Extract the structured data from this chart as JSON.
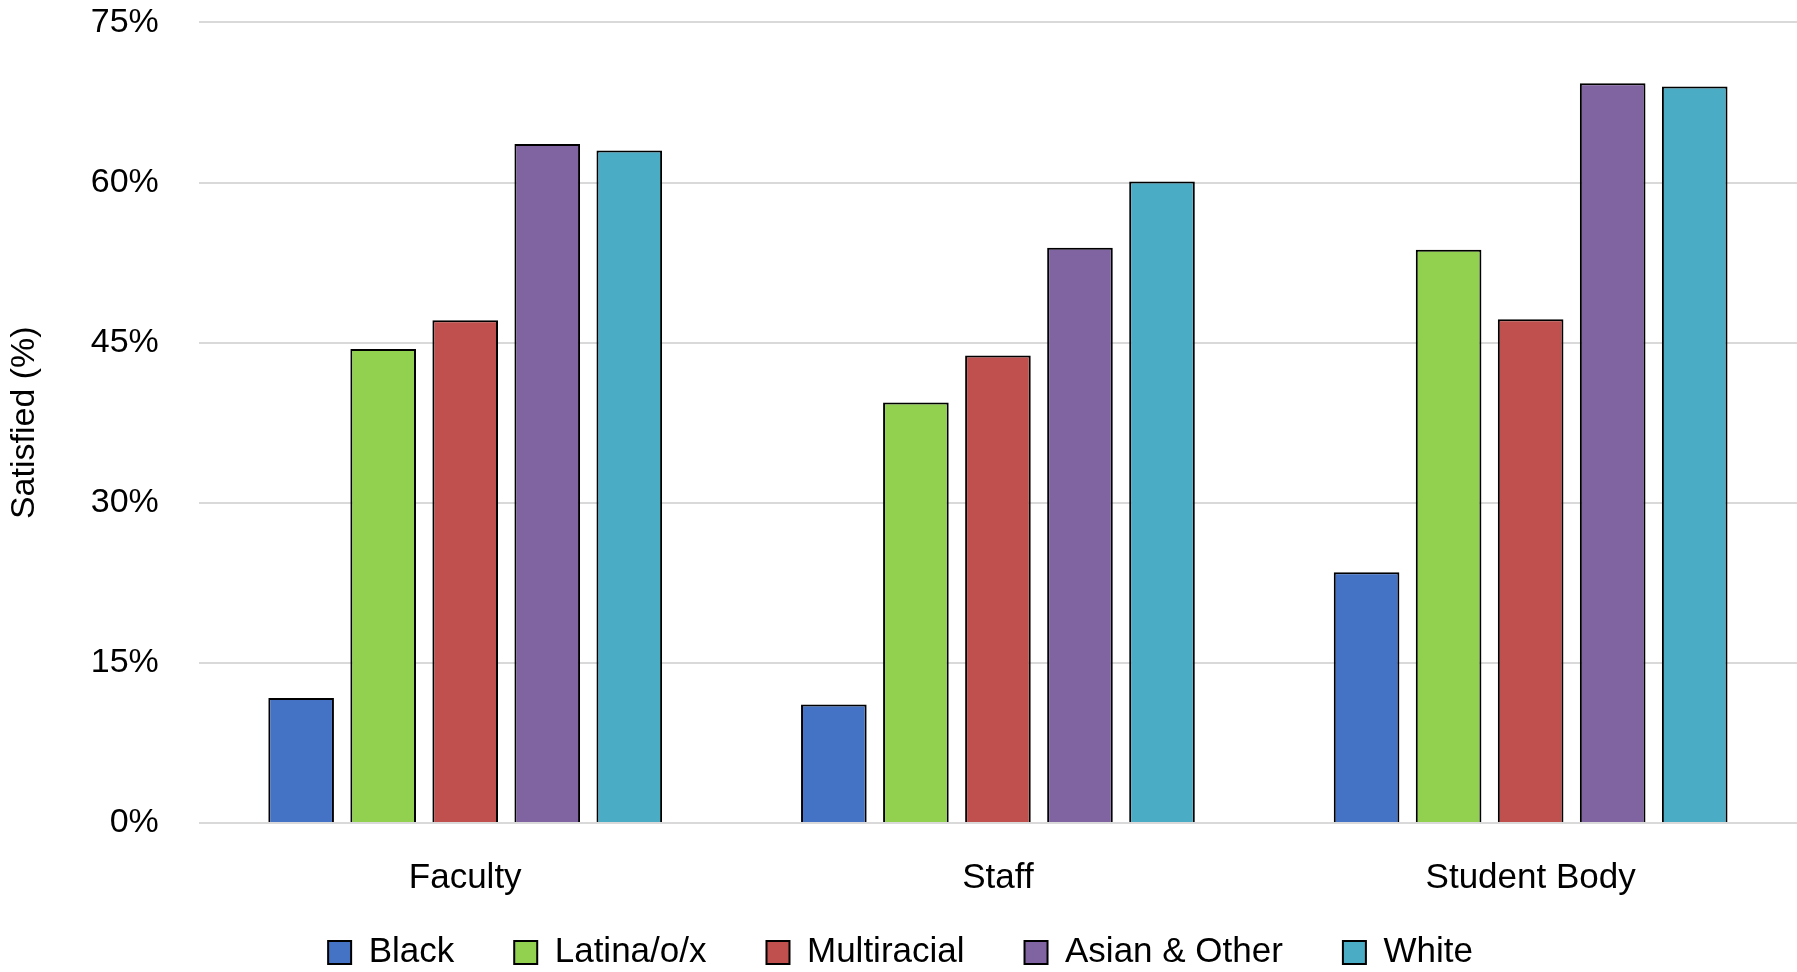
{
  "chart_data": {
    "type": "bar",
    "ylabel": "Satisfied (%)",
    "categories": [
      "Faculty",
      "Staff",
      "Student Body"
    ],
    "series": [
      {
        "name": "Black",
        "color": "#4472c4",
        "values": [
          11.7,
          11.1,
          23.5
        ]
      },
      {
        "name": "Latina/o/x",
        "color": "#92d050",
        "values": [
          44.4,
          39.4,
          53.7
        ]
      },
      {
        "name": "Multiracial",
        "color": "#c0504d",
        "values": [
          47.1,
          43.8,
          47.2
        ]
      },
      {
        "name": "Asian & Other",
        "color": "#8064a2",
        "values": [
          63.6,
          53.9,
          69.3
        ]
      },
      {
        "name": "White",
        "color": "#4bacc6",
        "values": [
          63.0,
          60.1,
          69.0
        ]
      }
    ],
    "ylim": [
      0,
      75
    ],
    "yticks": [
      {
        "value": 0,
        "label": "0%"
      },
      {
        "value": 15,
        "label": "15%"
      },
      {
        "value": 30,
        "label": "30%"
      },
      {
        "value": 45,
        "label": "45%"
      },
      {
        "value": 60,
        "label": "60%"
      },
      {
        "value": 75,
        "label": "75%"
      }
    ],
    "grid": "y",
    "legend": "bottom"
  }
}
